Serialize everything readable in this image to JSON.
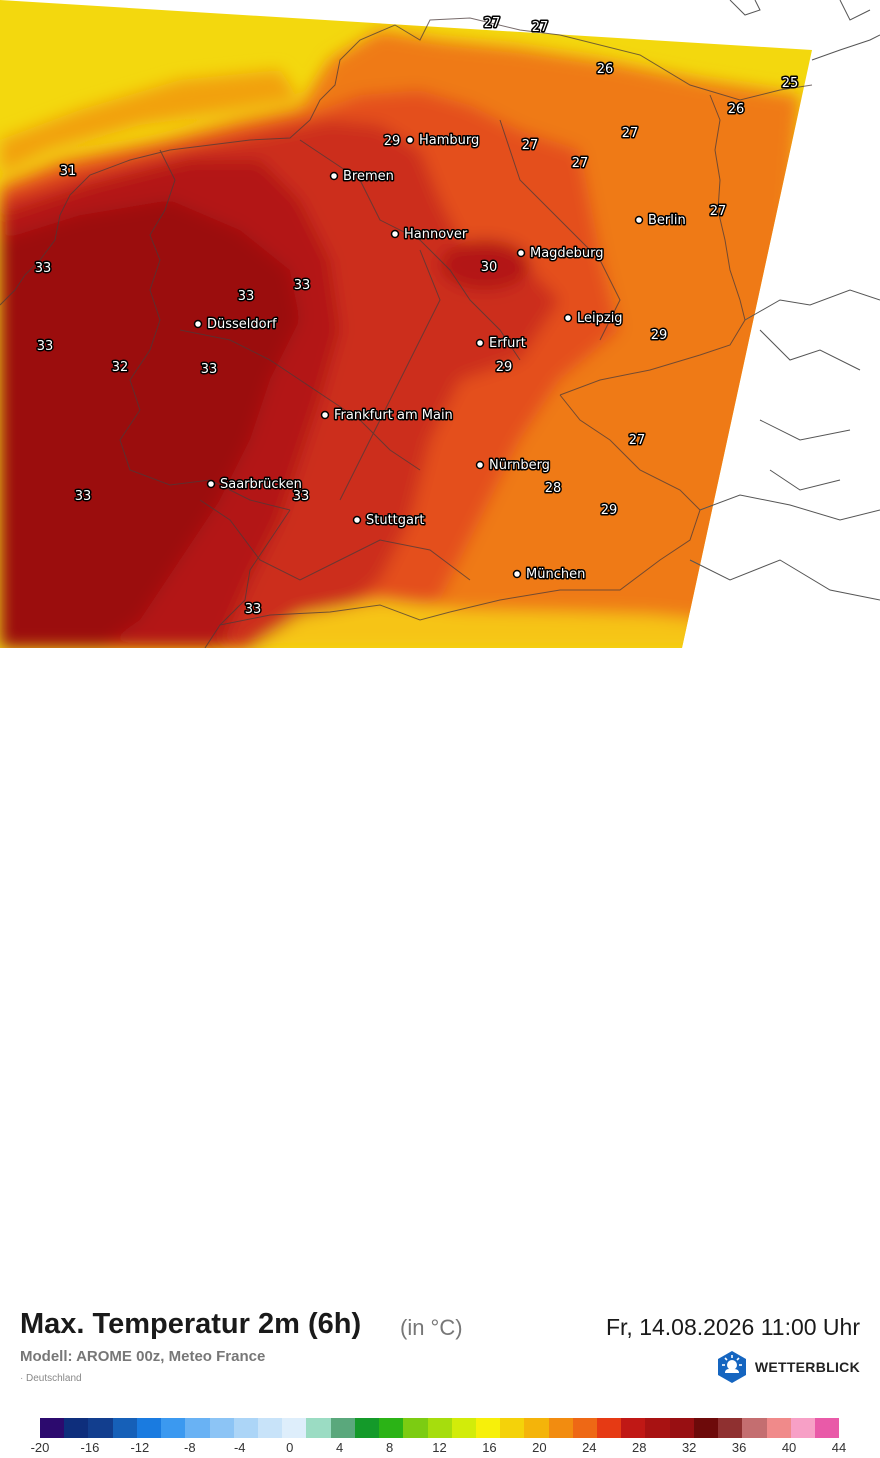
{
  "header": {
    "title": "Max. Temperatur 2m (6h)",
    "unit": "(in °C)",
    "datetime": "Fr, 14.08.2026 11:00 Uhr",
    "model": "Modell: AROME 00z, Meteo France",
    "region": "Deutschland"
  },
  "brand": {
    "name": "WETTERBLICK",
    "icon": "sun-cloud-logo-icon",
    "color": "#1565c0"
  },
  "colors": {
    "sea": "#f3d80e",
    "hot33": "#9b1010",
    "hot30": "#b31818",
    "hot29": "#cc2e1a",
    "hot27": "#e4501a",
    "warm26": "#ef7a12",
    "warm24": "#f2a10e",
    "alps": "#f6c417",
    "outside": "#ffffff"
  },
  "cities": [
    {
      "name": "Hamburg"
    },
    {
      "name": "Bremen"
    },
    {
      "name": "Hannover"
    },
    {
      "name": "Berlin"
    },
    {
      "name": "Magdeburg"
    },
    {
      "name": "Düsseldorf"
    },
    {
      "name": "Leipzig"
    },
    {
      "name": "Erfurt"
    },
    {
      "name": "Frankfurt am Main"
    },
    {
      "name": "Nürnberg"
    },
    {
      "name": "Saarbrücken"
    },
    {
      "name": "Stuttgart"
    },
    {
      "name": "München"
    }
  ],
  "temperature_labels": [
    "27",
    "27",
    "26",
    "25",
    "26",
    "27",
    "27",
    "27",
    "29",
    "31",
    "27",
    "33",
    "33",
    "33",
    "30",
    "33",
    "29",
    "32",
    "33",
    "29",
    "27",
    "33",
    "33",
    "28",
    "29",
    "33"
  ],
  "legend": {
    "colors": [
      "#2c0a6e",
      "#0e2e7c",
      "#123e8e",
      "#1660b8",
      "#1a7be0",
      "#3b99f0",
      "#69b2f4",
      "#8cc4f5",
      "#acd5f7",
      "#c8e3f9",
      "#deeefb",
      "#9bdcc3",
      "#5aa87c",
      "#149a2a",
      "#2bb316",
      "#7ccc12",
      "#a6dd0d",
      "#d2ec0a",
      "#f7f00a",
      "#f4d20a",
      "#f4b40a",
      "#f28c10",
      "#ee6815",
      "#e63a14",
      "#c01815",
      "#a81212",
      "#980f12",
      "#6d0a0a",
      "#8f3030",
      "#c46e70",
      "#f08a8a",
      "#f7a0c6",
      "#e95aa8"
    ],
    "labels": [
      "-20",
      "-16",
      "-12",
      "-8",
      "-4",
      "0",
      "4",
      "8",
      "12",
      "16",
      "20",
      "24",
      "28",
      "32",
      "36",
      "40",
      "44"
    ]
  }
}
